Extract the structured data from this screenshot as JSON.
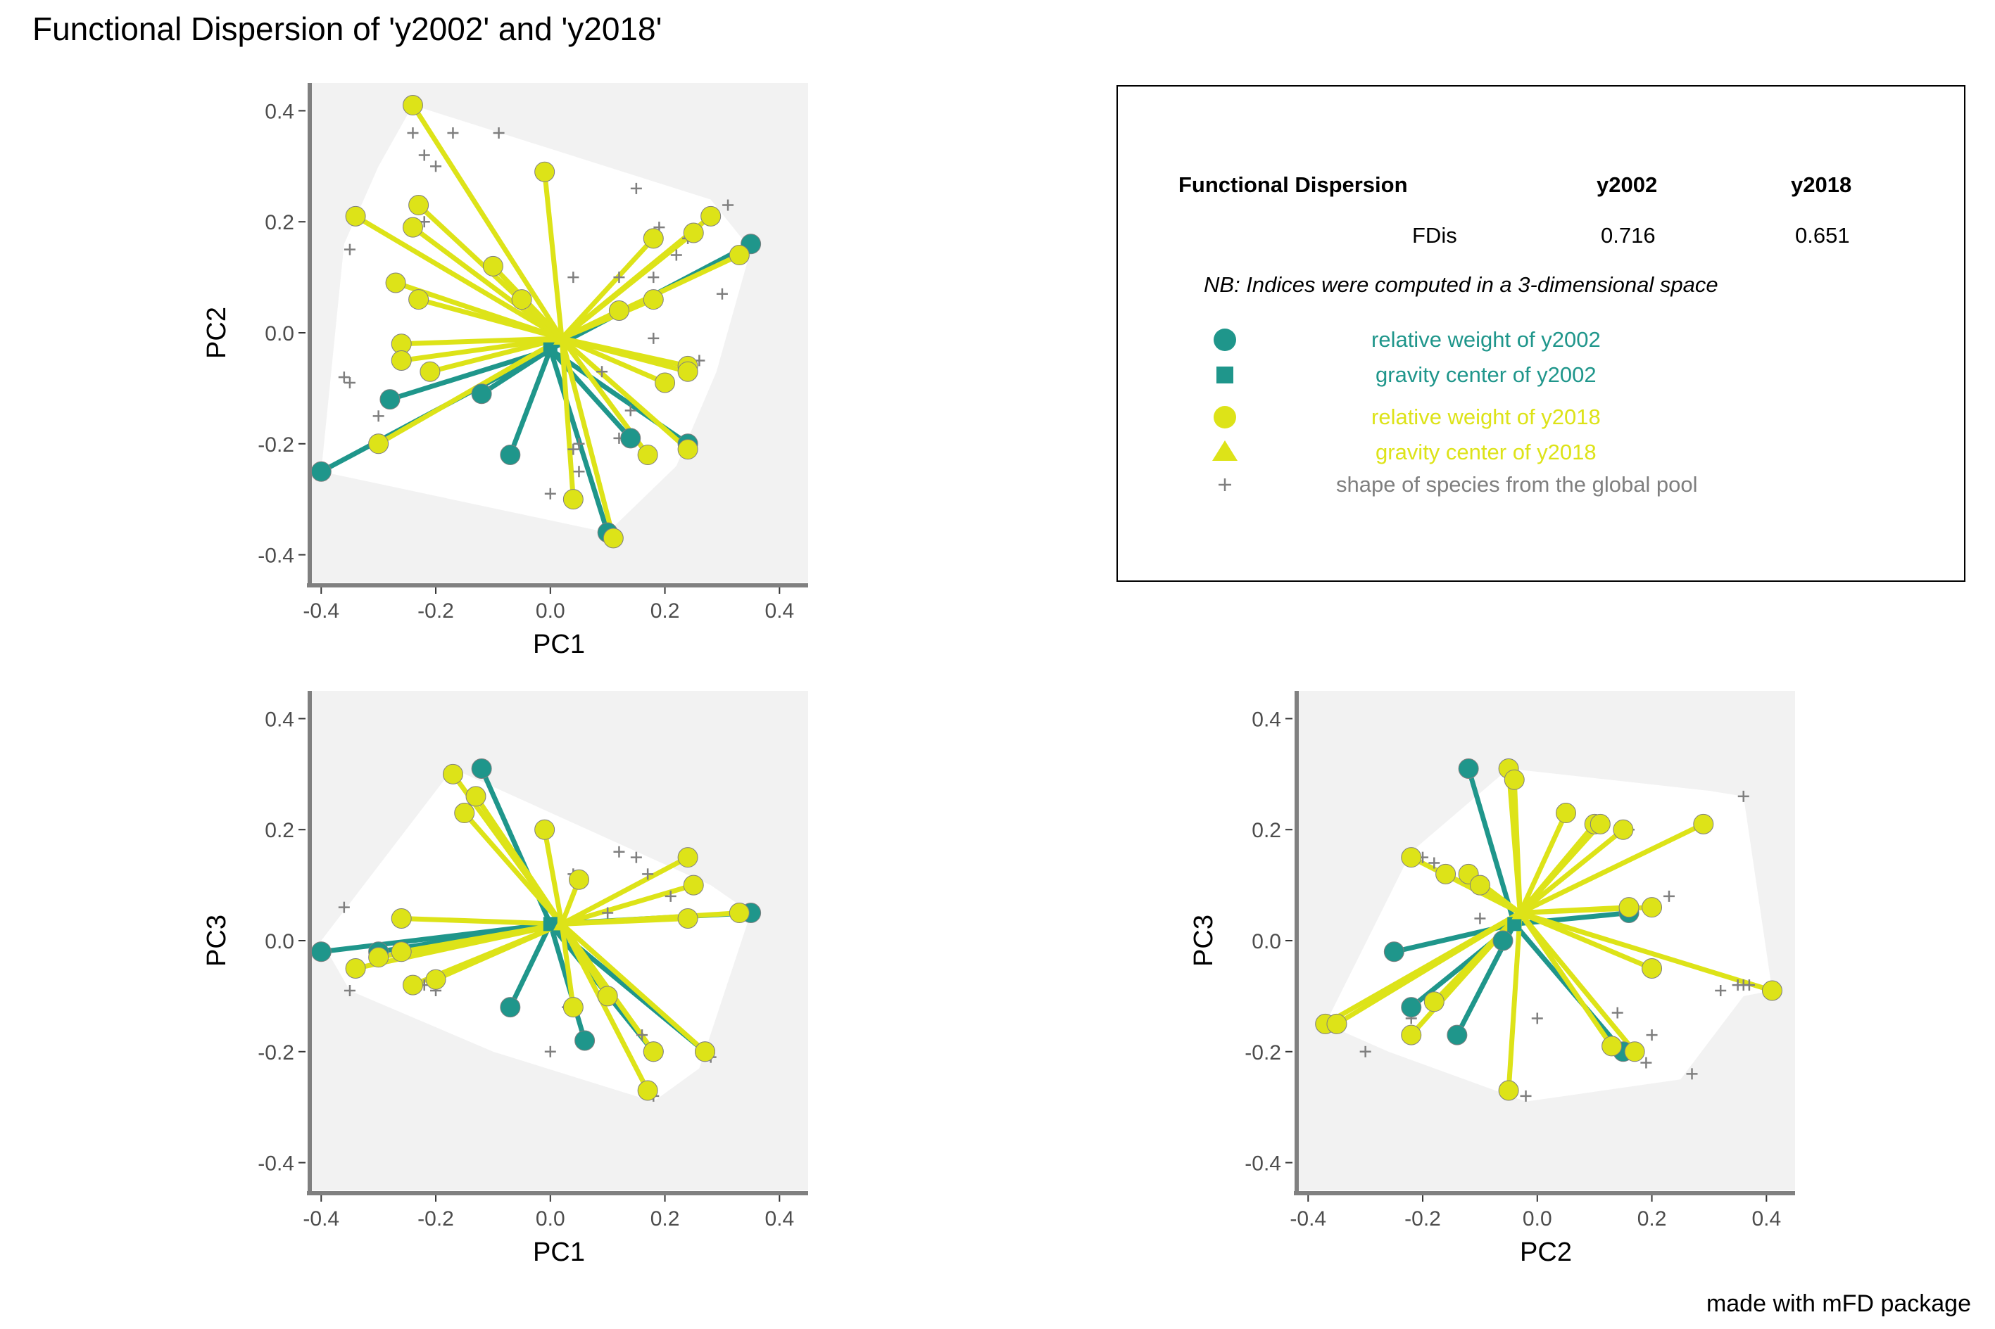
{
  "title": "Functional Dispersion of 'y2002' and 'y2018'",
  "footer": "made with mFD package",
  "colors": {
    "y2002": "#1f968b",
    "y2018": "#dde318",
    "pool": "#7f7f7f",
    "panel_bg": "#f2f2f2",
    "hull": "#ffffff"
  },
  "legend": {
    "table_header": "Functional Dispersion",
    "col1": "y2002",
    "col2": "y2018",
    "row_label": "FDis",
    "val1": "0.716",
    "val2": "0.651",
    "note": "NB: Indices were computed in a 3-dimensional space",
    "items": [
      {
        "label": "relative weight of y2002",
        "icon": "circle",
        "color": "#1f968b"
      },
      {
        "label": "gravity center of y2002",
        "icon": "square",
        "color": "#1f968b"
      },
      {
        "label": "relative weight of y2018",
        "icon": "circle",
        "color": "#dde318"
      },
      {
        "label": "gravity center of y2018",
        "icon": "triangle",
        "color": "#dde318"
      },
      {
        "label": "shape of species from the global pool",
        "icon": "plus",
        "color": "#7f7f7f"
      }
    ]
  },
  "chart_data": [
    {
      "type": "scatter",
      "xlabel": "PC1",
      "ylabel": "PC2",
      "xlim": [
        -0.42,
        0.45
      ],
      "ylim": [
        -0.45,
        0.45
      ],
      "xticks": [
        "-0.4",
        "-0.2",
        "0.0",
        "0.2",
        "0.4"
      ],
      "yticks": [
        "-0.4",
        "-0.2",
        "0.0",
        "0.2",
        "0.4"
      ],
      "hull": [
        [
          -0.24,
          0.41
        ],
        [
          -0.3,
          0.3
        ],
        [
          -0.36,
          0.16
        ],
        [
          -0.4,
          -0.25
        ],
        [
          0.1,
          -0.36
        ],
        [
          0.22,
          -0.24
        ],
        [
          0.29,
          -0.07
        ],
        [
          0.35,
          0.15
        ],
        [
          0.28,
          0.24
        ]
      ],
      "centers": {
        "y2002": [
          -0.0,
          -0.03
        ],
        "y2018": [
          0.02,
          -0.01
        ]
      },
      "points_y2002": [
        [
          0.35,
          0.16
        ],
        [
          -0.4,
          -0.25
        ],
        [
          -0.28,
          -0.12
        ],
        [
          -0.12,
          -0.11
        ],
        [
          -0.07,
          -0.22
        ],
        [
          0.24,
          -0.2
        ],
        [
          0.1,
          -0.36
        ],
        [
          0.14,
          -0.19
        ]
      ],
      "points_y2018": [
        [
          -0.24,
          0.41
        ],
        [
          -0.34,
          0.21
        ],
        [
          -0.23,
          0.23
        ],
        [
          -0.24,
          0.19
        ],
        [
          -0.27,
          0.09
        ],
        [
          -0.23,
          0.06
        ],
        [
          -0.26,
          -0.02
        ],
        [
          -0.26,
          -0.05
        ],
        [
          -0.21,
          -0.07
        ],
        [
          -0.3,
          -0.2
        ],
        [
          -0.1,
          0.12
        ],
        [
          -0.05,
          0.06
        ],
        [
          -0.01,
          0.29
        ],
        [
          0.18,
          0.17
        ],
        [
          0.25,
          0.18
        ],
        [
          0.28,
          0.21
        ],
        [
          0.33,
          0.14
        ],
        [
          0.18,
          0.06
        ],
        [
          0.24,
          -0.06
        ],
        [
          0.24,
          -0.07
        ],
        [
          0.2,
          -0.09
        ],
        [
          0.17,
          -0.22
        ],
        [
          0.04,
          -0.3
        ],
        [
          0.11,
          -0.37
        ],
        [
          0.24,
          -0.21
        ],
        [
          0.12,
          0.04
        ]
      ],
      "pool": [
        [
          -0.24,
          0.36
        ],
        [
          -0.17,
          0.36
        ],
        [
          -0.09,
          0.36
        ],
        [
          -0.22,
          0.32
        ],
        [
          -0.2,
          0.3
        ],
        [
          0.15,
          0.26
        ],
        [
          0.31,
          0.23
        ],
        [
          -0.35,
          0.15
        ],
        [
          0.19,
          0.19
        ],
        [
          0.24,
          0.17
        ],
        [
          0.22,
          0.14
        ],
        [
          0.3,
          0.07
        ],
        [
          0.04,
          0.1
        ],
        [
          0.12,
          0.1
        ],
        [
          0.18,
          0.1
        ],
        [
          -0.36,
          -0.08
        ],
        [
          -0.35,
          -0.09
        ],
        [
          -0.3,
          -0.15
        ],
        [
          0.18,
          -0.01
        ],
        [
          0.26,
          -0.05
        ],
        [
          0.14,
          -0.14
        ],
        [
          0.05,
          -0.2
        ],
        [
          0.12,
          -0.19
        ],
        [
          0.05,
          -0.25
        ],
        [
          0.0,
          -0.29
        ],
        [
          0.04,
          -0.21
        ],
        [
          0.09,
          -0.07
        ],
        [
          -0.22,
          0.2
        ]
      ]
    },
    {
      "type": "scatter",
      "xlabel": "PC1",
      "ylabel": "PC3",
      "xlim": [
        -0.42,
        0.45
      ],
      "ylim": [
        -0.45,
        0.45
      ],
      "xticks": [
        "-0.4",
        "-0.2",
        "0.0",
        "0.2",
        "0.4"
      ],
      "yticks": [
        "-0.4",
        "-0.2",
        "0.0",
        "0.2",
        "0.4"
      ],
      "hull": [
        [
          -0.17,
          0.31
        ],
        [
          -0.4,
          0.0
        ],
        [
          -0.35,
          -0.09
        ],
        [
          -0.1,
          -0.2
        ],
        [
          0.18,
          -0.29
        ],
        [
          0.26,
          -0.23
        ],
        [
          0.35,
          0.05
        ],
        [
          0.28,
          0.1
        ]
      ],
      "centers": {
        "y2002": [
          -0.0,
          0.03
        ],
        "y2018": [
          0.02,
          0.03
        ]
      },
      "points_y2002": [
        [
          -0.12,
          0.31
        ],
        [
          0.35,
          0.05
        ],
        [
          -0.4,
          -0.02
        ],
        [
          -0.3,
          -0.02
        ],
        [
          -0.07,
          -0.12
        ],
        [
          0.06,
          -0.18
        ],
        [
          0.18,
          -0.2
        ],
        [
          0.27,
          -0.2
        ]
      ],
      "points_y2018": [
        [
          -0.17,
          0.3
        ],
        [
          -0.13,
          0.26
        ],
        [
          -0.01,
          0.2
        ],
        [
          0.24,
          0.15
        ],
        [
          0.25,
          0.1
        ],
        [
          0.24,
          0.04
        ],
        [
          0.33,
          0.05
        ],
        [
          -0.26,
          0.04
        ],
        [
          -0.34,
          -0.05
        ],
        [
          -0.24,
          -0.08
        ],
        [
          -0.2,
          -0.07
        ],
        [
          -0.26,
          -0.02
        ],
        [
          -0.3,
          -0.03
        ],
        [
          0.04,
          -0.12
        ],
        [
          0.17,
          -0.27
        ],
        [
          0.18,
          -0.2
        ],
        [
          0.27,
          -0.2
        ],
        [
          0.1,
          -0.1
        ],
        [
          -0.15,
          0.23
        ],
        [
          0.05,
          0.11
        ]
      ],
      "pool": [
        [
          -0.36,
          0.06
        ],
        [
          -0.35,
          -0.09
        ],
        [
          -0.22,
          -0.08
        ],
        [
          -0.2,
          -0.09
        ],
        [
          0.04,
          0.12
        ],
        [
          0.12,
          0.16
        ],
        [
          0.15,
          0.15
        ],
        [
          0.17,
          0.12
        ],
        [
          -0.0,
          -0.2
        ],
        [
          0.03,
          -0.12
        ],
        [
          0.16,
          -0.17
        ],
        [
          0.18,
          -0.28
        ],
        [
          0.28,
          -0.21
        ],
        [
          0.1,
          0.05
        ],
        [
          0.21,
          0.08
        ]
      ]
    },
    {
      "type": "scatter",
      "xlabel": "PC2",
      "ylabel": "PC3",
      "xlim": [
        -0.42,
        0.45
      ],
      "ylim": [
        -0.45,
        0.45
      ],
      "xticks": [
        "-0.4",
        "-0.2",
        "0.0",
        "0.2",
        "0.4"
      ],
      "yticks": [
        "-0.4",
        "-0.2",
        "0.0",
        "0.2",
        "0.4"
      ],
      "hull": [
        [
          -0.05,
          0.31
        ],
        [
          0.3,
          0.27
        ],
        [
          0.36,
          0.26
        ],
        [
          0.41,
          -0.09
        ],
        [
          0.36,
          -0.1
        ],
        [
          0.25,
          -0.25
        ],
        [
          -0.02,
          -0.29
        ],
        [
          -0.26,
          -0.2
        ],
        [
          -0.37,
          -0.15
        ],
        [
          -0.22,
          0.16
        ]
      ],
      "centers": {
        "y2002": [
          -0.04,
          0.03
        ],
        "y2018": [
          -0.03,
          0.05
        ]
      },
      "points_y2002": [
        [
          -0.12,
          0.31
        ],
        [
          -0.25,
          -0.02
        ],
        [
          -0.22,
          -0.12
        ],
        [
          -0.14,
          -0.17
        ],
        [
          0.16,
          0.05
        ],
        [
          0.15,
          -0.2
        ],
        [
          -0.06,
          0.0
        ]
      ],
      "points_y2018": [
        [
          -0.05,
          0.31
        ],
        [
          -0.04,
          0.29
        ],
        [
          0.05,
          0.23
        ],
        [
          0.1,
          0.21
        ],
        [
          0.11,
          0.21
        ],
        [
          0.15,
          0.2
        ],
        [
          0.29,
          0.21
        ],
        [
          -0.22,
          0.15
        ],
        [
          -0.16,
          0.12
        ],
        [
          -0.12,
          0.12
        ],
        [
          -0.1,
          0.1
        ],
        [
          0.2,
          0.06
        ],
        [
          0.16,
          0.06
        ],
        [
          0.41,
          -0.09
        ],
        [
          -0.37,
          -0.15
        ],
        [
          -0.35,
          -0.15
        ],
        [
          -0.22,
          -0.17
        ],
        [
          -0.18,
          -0.11
        ],
        [
          -0.05,
          -0.27
        ],
        [
          0.13,
          -0.19
        ],
        [
          0.17,
          -0.2
        ],
        [
          0.2,
          -0.05
        ]
      ],
      "pool": [
        [
          0.36,
          0.26
        ],
        [
          -0.2,
          0.15
        ],
        [
          -0.18,
          0.14
        ],
        [
          0.16,
          0.2
        ],
        [
          -0.1,
          0.04
        ],
        [
          0.23,
          0.08
        ],
        [
          0.35,
          -0.08
        ],
        [
          0.36,
          -0.08
        ],
        [
          0.37,
          -0.08
        ],
        [
          0.32,
          -0.09
        ],
        [
          -0.22,
          -0.14
        ],
        [
          -0.3,
          -0.2
        ],
        [
          -0.02,
          -0.28
        ],
        [
          0.27,
          -0.24
        ],
        [
          0.19,
          -0.22
        ],
        [
          0.0,
          -0.14
        ],
        [
          0.14,
          -0.13
        ],
        [
          0.2,
          -0.17
        ]
      ]
    }
  ]
}
